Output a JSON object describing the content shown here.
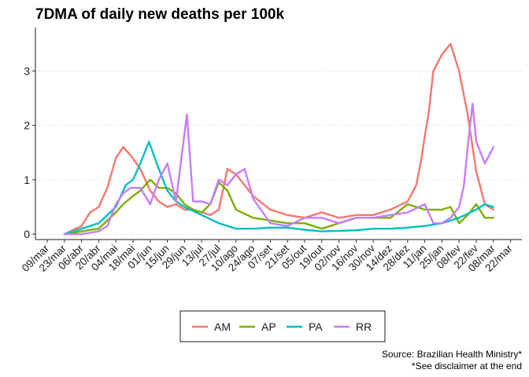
{
  "chart_data": {
    "type": "line",
    "title": "7DMA of daily new deaths per 100k",
    "xlabel": "",
    "ylabel": "",
    "x_start": "2020-03-09",
    "x_tick_labels": [
      "09/mar",
      "23/mar",
      "06/abr",
      "20/abr",
      "04/mai",
      "18/mai",
      "01/jun",
      "15/jun",
      "29/jun",
      "13/jul",
      "27/jul",
      "10/ago",
      "24/ago",
      "07/set",
      "21/set",
      "05/out",
      "19/out",
      "02/nov",
      "16/nov",
      "30/nov",
      "14/dez",
      "28/dez",
      "11/jan",
      "25/jan",
      "08/fev",
      "22/fev",
      "08/mar",
      "22/mar"
    ],
    "y_ticks": [
      0,
      1,
      2,
      3
    ],
    "ylim": [
      -0.1,
      3.8
    ],
    "grid": "horizontal dotted",
    "legend_position": "bottom",
    "series": [
      {
        "name": "AM",
        "color": "#F8766D",
        "x": [
          "2020-03-23",
          "2020-04-06",
          "2020-04-13",
          "2020-04-20",
          "2020-04-27",
          "2020-05-04",
          "2020-05-10",
          "2020-05-16",
          "2020-05-24",
          "2020-06-01",
          "2020-06-08",
          "2020-06-15",
          "2020-06-22",
          "2020-06-29",
          "2020-07-06",
          "2020-07-13",
          "2020-07-20",
          "2020-07-27",
          "2020-08-03",
          "2020-08-10",
          "2020-08-24",
          "2020-09-07",
          "2020-09-21",
          "2020-10-05",
          "2020-10-19",
          "2020-11-02",
          "2020-11-16",
          "2020-11-30",
          "2020-12-14",
          "2020-12-28",
          "2021-01-04",
          "2021-01-08",
          "2021-01-11",
          "2021-01-14",
          "2021-01-18",
          "2021-01-25",
          "2021-02-01",
          "2021-02-08",
          "2021-02-15",
          "2021-02-22",
          "2021-03-01",
          "2021-03-08"
        ],
        "values": [
          0.0,
          0.15,
          0.4,
          0.5,
          0.85,
          1.4,
          1.6,
          1.45,
          1.2,
          0.8,
          0.6,
          0.5,
          0.55,
          0.45,
          0.45,
          0.4,
          0.35,
          0.45,
          1.2,
          1.1,
          0.7,
          0.45,
          0.35,
          0.3,
          0.4,
          0.3,
          0.35,
          0.35,
          0.45,
          0.6,
          0.9,
          1.35,
          1.8,
          2.2,
          3.0,
          3.3,
          3.5,
          3.0,
          2.2,
          1.15,
          0.55,
          0.45
        ]
      },
      {
        "name": "AP",
        "color": "#7CAE00",
        "x": [
          "2020-03-23",
          "2020-04-06",
          "2020-04-20",
          "2020-05-04",
          "2020-05-10",
          "2020-05-18",
          "2020-05-24",
          "2020-06-01",
          "2020-06-08",
          "2020-06-15",
          "2020-06-22",
          "2020-06-29",
          "2020-07-06",
          "2020-07-13",
          "2020-07-20",
          "2020-07-27",
          "2020-08-03",
          "2020-08-10",
          "2020-08-24",
          "2020-09-07",
          "2020-09-21",
          "2020-10-05",
          "2020-10-19",
          "2020-11-02",
          "2020-11-16",
          "2020-11-30",
          "2020-12-14",
          "2020-12-28",
          "2021-01-11",
          "2021-01-25",
          "2021-02-01",
          "2021-02-08",
          "2021-02-15",
          "2021-02-22",
          "2021-03-01",
          "2021-03-08"
        ],
        "values": [
          0.0,
          0.05,
          0.1,
          0.4,
          0.55,
          0.7,
          0.8,
          1.0,
          0.85,
          0.85,
          0.75,
          0.55,
          0.45,
          0.4,
          0.55,
          0.95,
          0.8,
          0.45,
          0.3,
          0.25,
          0.2,
          0.2,
          0.1,
          0.2,
          0.3,
          0.3,
          0.3,
          0.55,
          0.45,
          0.45,
          0.5,
          0.2,
          0.35,
          0.55,
          0.3,
          0.3
        ]
      },
      {
        "name": "PA",
        "color": "#00BFC4",
        "x": [
          "2020-03-23",
          "2020-04-06",
          "2020-04-20",
          "2020-05-04",
          "2020-05-12",
          "2020-05-18",
          "2020-05-24",
          "2020-05-31",
          "2020-06-08",
          "2020-06-15",
          "2020-06-22",
          "2020-06-29",
          "2020-07-13",
          "2020-07-27",
          "2020-08-10",
          "2020-08-24",
          "2020-09-07",
          "2020-09-21",
          "2020-10-05",
          "2020-10-19",
          "2020-11-02",
          "2020-11-16",
          "2020-11-30",
          "2020-12-14",
          "2020-12-28",
          "2021-01-11",
          "2021-01-25",
          "2021-02-08",
          "2021-02-22",
          "2021-03-01",
          "2021-03-08"
        ],
        "values": [
          0.0,
          0.1,
          0.2,
          0.5,
          0.9,
          1.0,
          1.3,
          1.7,
          1.2,
          0.8,
          0.6,
          0.5,
          0.35,
          0.2,
          0.1,
          0.1,
          0.12,
          0.12,
          0.08,
          0.05,
          0.06,
          0.07,
          0.1,
          0.1,
          0.12,
          0.15,
          0.2,
          0.3,
          0.45,
          0.55,
          0.5
        ]
      },
      {
        "name": "RR",
        "color": "#C77CFF",
        "x": [
          "2020-03-23",
          "2020-04-06",
          "2020-04-20",
          "2020-04-27",
          "2020-05-04",
          "2020-05-10",
          "2020-05-16",
          "2020-05-24",
          "2020-06-01",
          "2020-06-08",
          "2020-06-15",
          "2020-06-22",
          "2020-06-27",
          "2020-07-01",
          "2020-07-06",
          "2020-07-13",
          "2020-07-20",
          "2020-07-27",
          "2020-08-03",
          "2020-08-10",
          "2020-08-17",
          "2020-08-24",
          "2020-09-07",
          "2020-09-21",
          "2020-10-05",
          "2020-10-19",
          "2020-11-02",
          "2020-11-16",
          "2020-11-30",
          "2020-12-14",
          "2020-12-28",
          "2021-01-11",
          "2021-01-18",
          "2021-01-25",
          "2021-02-01",
          "2021-02-08",
          "2021-02-12",
          "2021-02-15",
          "2021-02-19",
          "2021-02-22",
          "2021-03-01",
          "2021-03-08"
        ],
        "values": [
          0.0,
          0.0,
          0.05,
          0.15,
          0.55,
          0.75,
          0.85,
          0.85,
          0.55,
          1.0,
          1.3,
          0.6,
          1.5,
          2.2,
          0.6,
          0.6,
          0.55,
          1.0,
          0.9,
          1.1,
          1.2,
          0.65,
          0.2,
          0.15,
          0.3,
          0.3,
          0.2,
          0.3,
          0.3,
          0.35,
          0.4,
          0.55,
          0.2,
          0.2,
          0.3,
          0.5,
          0.9,
          1.6,
          2.4,
          1.7,
          1.3,
          1.6
        ]
      }
    ],
    "caption_lines": [
      "Source: Brazilian Health Ministry*",
      "*See disclaimer at the end"
    ]
  }
}
